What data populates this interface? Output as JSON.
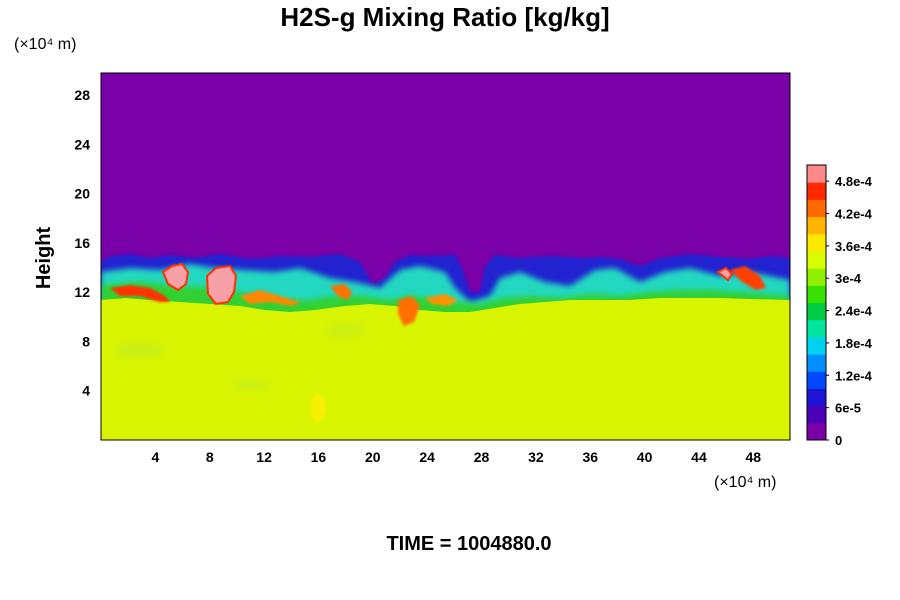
{
  "chart_data": {
    "type": "heatmap",
    "title": "H2S-g Mixing Ratio [kg/kg]",
    "xlabel": "",
    "ylabel": "Height",
    "x_unit_label": "(×10⁴ m)",
    "y_unit_label": "(×10⁴ m)",
    "x_ticks": [
      4,
      8,
      12,
      16,
      20,
      24,
      28,
      32,
      36,
      40,
      44,
      48
    ],
    "y_ticks": [
      4,
      8,
      12,
      16,
      20,
      24,
      28
    ],
    "xlim": [
      0,
      50.7
    ],
    "ylim": [
      0,
      29.8
    ],
    "colorbar": {
      "ticks": [
        "0",
        "6e-5",
        "1.2e-4",
        "1.8e-4",
        "2.4e-4",
        "3e-4",
        "3.6e-4",
        "4.2e-4",
        "4.8e-4"
      ],
      "tick_values": [
        0,
        6e-05,
        0.00012,
        0.00018,
        0.00024,
        0.0003,
        0.00036,
        0.00042,
        0.00048
      ],
      "range": [
        0,
        0.00051
      ],
      "colors": [
        "#7a00a8",
        "#4a00b8",
        "#1e14d4",
        "#0048ff",
        "#0090ff",
        "#00d2f0",
        "#00e6a0",
        "#00cc44",
        "#38e000",
        "#90f000",
        "#d8ff00",
        "#ffe800",
        "#ffb400",
        "#ff6a00",
        "#ff2800",
        "#ff8888"
      ]
    },
    "field": {
      "background_value": 0,
      "lower_layer_value": 0.00034,
      "layer_top_approx": 11
    },
    "time_label": "TIME = 1004880.0"
  }
}
